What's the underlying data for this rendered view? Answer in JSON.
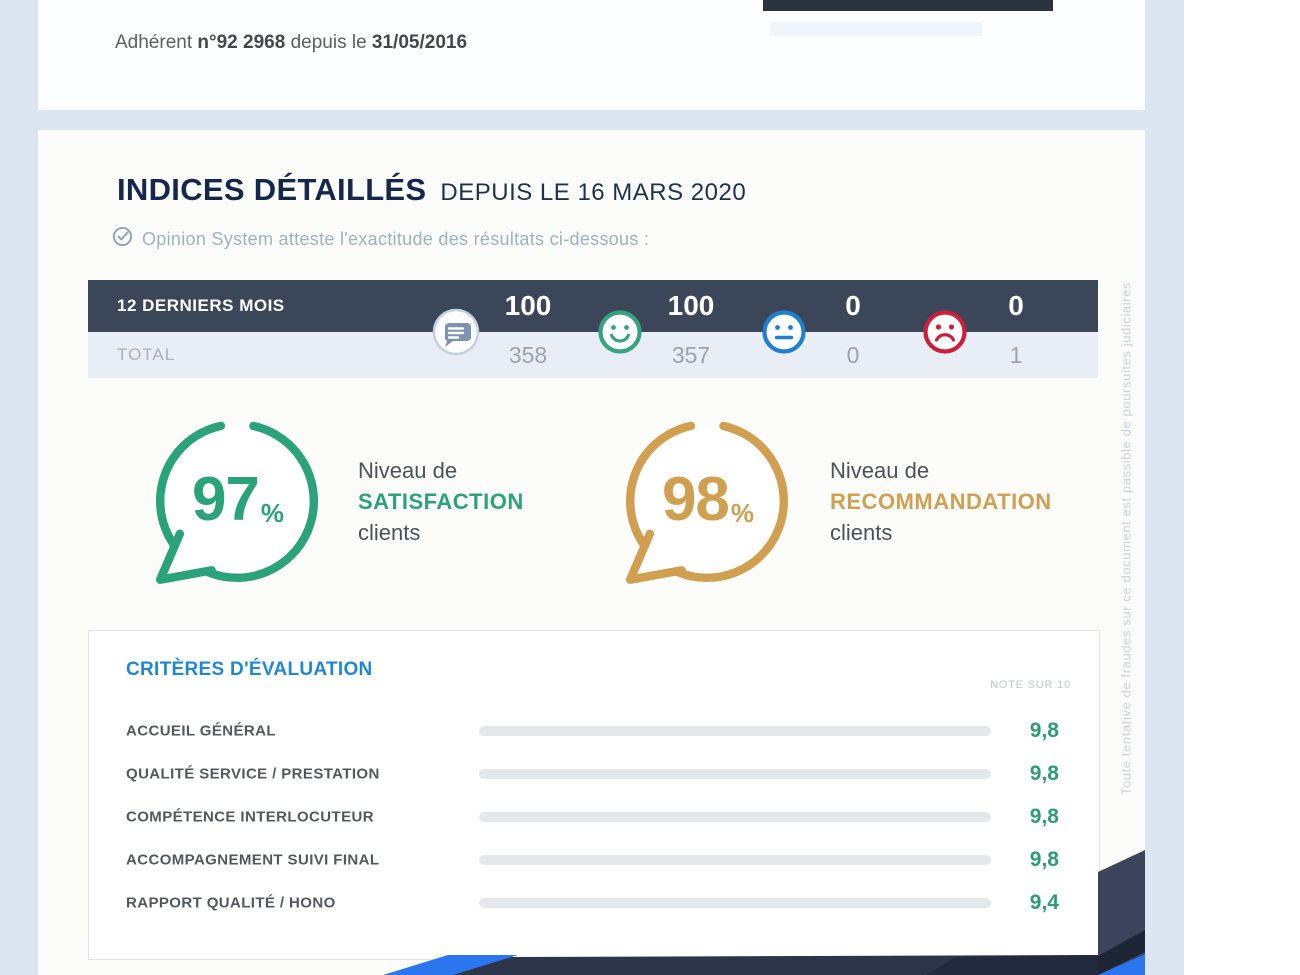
{
  "member": {
    "prefix": "Adhérent",
    "number": "n°92 2968",
    "middle": "depuis le",
    "date": "31/05/2016"
  },
  "header": {
    "title": "INDICES DÉTAILLÉS",
    "since_label": "DEPUIS LE 16 MARS 2020",
    "attestation": "Opinion System atteste l'exactitude des résultats ci-dessous :"
  },
  "summary_table": {
    "row_recent_label": "12 DERNIERS MOIS",
    "row_total_label": "TOTAL",
    "columns": [
      "comments",
      "satisfied",
      "neutral",
      "dissatisfied"
    ],
    "recent_values": [
      "100",
      "100",
      "0",
      "0"
    ],
    "total_values": [
      "358",
      "357",
      "0",
      "1"
    ]
  },
  "badges": {
    "satisfaction": {
      "value": "97",
      "unit": "%",
      "line1": "Niveau de",
      "line2": "SATISFACTION",
      "line3": "clients"
    },
    "recommendation": {
      "value": "98",
      "unit": "%",
      "line1": "Niveau de",
      "line2": "RECOMMANDATION",
      "line3": "clients"
    }
  },
  "criteria": {
    "title": "CRITÈRES D'ÉVALUATION",
    "note_label": "NOTE SUR 10",
    "items": [
      {
        "label": "ACCUEIL GÉNÉRAL",
        "value": "9,8",
        "score": 9.8
      },
      {
        "label": "QUALITÉ SERVICE / PRESTATION",
        "value": "9,8",
        "score": 9.8
      },
      {
        "label": "COMPÉTENCE INTERLOCUTEUR",
        "value": "9,8",
        "score": 9.8
      },
      {
        "label": "ACCOMPAGNEMENT SUIVI FINAL",
        "value": "9,8",
        "score": 9.8
      },
      {
        "label": "RAPPORT QUALITÉ / HONO",
        "value": "9,4",
        "score": 9.4
      }
    ]
  },
  "watermark": "Toute tentative de fraudes sur ce document est passible de poursuites judiciaires",
  "colors": {
    "green": "#2ba37a",
    "gold": "#d0a050",
    "blue_heading": "#1f87d6",
    "navy_header": "#3c4659",
    "table_light_row": "#e9eef6",
    "neutral_blue": "#1f7fd1",
    "sad_red": "#ce1e3c",
    "deco_navy": "#2d3549",
    "deco_blue": "#2b76ee",
    "page_band": "#dce5f2"
  },
  "chart_data": {
    "type": "bar",
    "title": "CRITÈRES D'ÉVALUATION",
    "categories": [
      "ACCUEIL GÉNÉRAL",
      "QUALITÉ SERVICE / PRESTATION",
      "COMPÉTENCE INTERLOCUTEUR",
      "ACCOMPAGNEMENT SUIVI FINAL",
      "RAPPORT QUALITÉ / HONO"
    ],
    "values": [
      9.8,
      9.8,
      9.8,
      9.8,
      9.4
    ],
    "xlabel": "",
    "ylabel": "NOTE SUR 10",
    "xlim": [
      0,
      10
    ],
    "grid": false,
    "orientation": "horizontal"
  }
}
